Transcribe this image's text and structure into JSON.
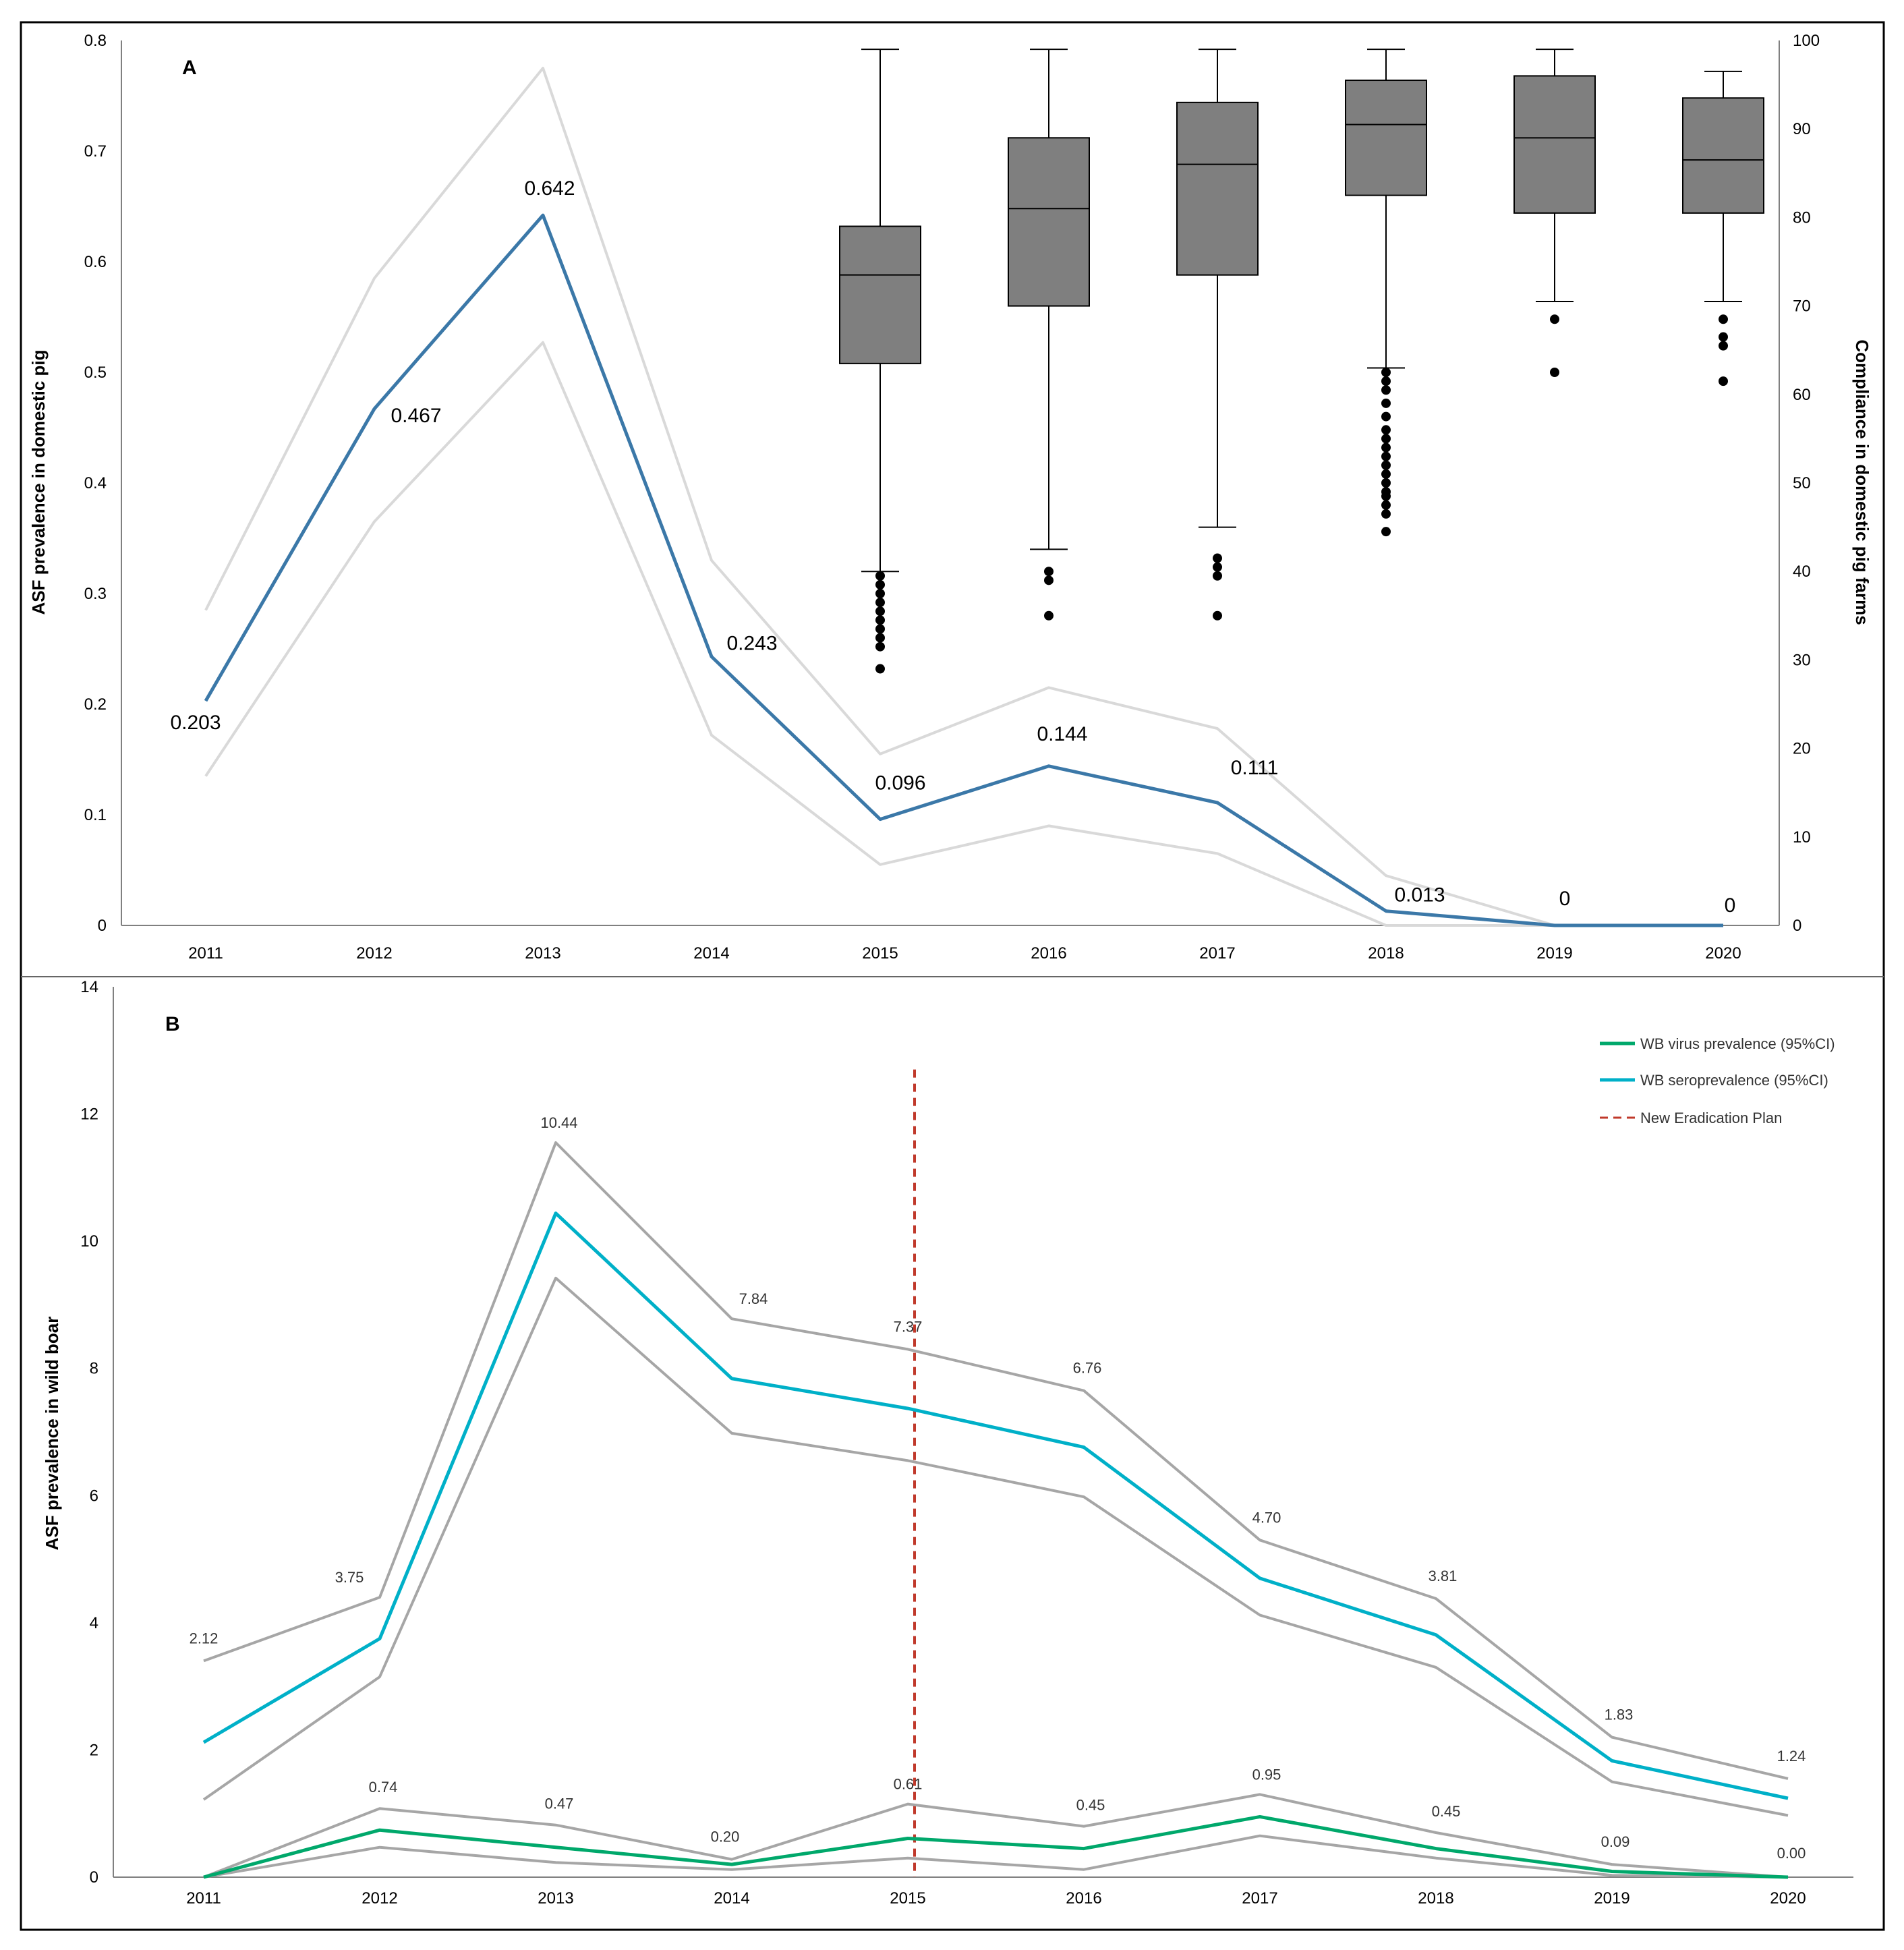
{
  "panel_a": {
    "letter": "A",
    "chart_data": {
      "type": "line",
      "x": [
        "2011",
        "2012",
        "2013",
        "2014",
        "2015",
        "2016",
        "2017",
        "2018",
        "2019",
        "2020"
      ],
      "ylabel_left": "ASF prevalence in domestic pig",
      "ylabel_right": "Compliance in domestic pig farms",
      "ylim_left": [
        0,
        0.8
      ],
      "ylim_right": [
        0,
        100
      ],
      "yticks_left": [
        "0",
        "0.1",
        "0.2",
        "0.3",
        "0.4",
        "0.5",
        "0.6",
        "0.7",
        "0.8"
      ],
      "yticks_right": [
        "0",
        "10",
        "20",
        "30",
        "40",
        "50",
        "60",
        "70",
        "80",
        "90",
        "100"
      ],
      "series": [
        {
          "name": "ASF prevalence",
          "color": "#3b78a8",
          "values": [
            0.203,
            0.467,
            0.642,
            0.243,
            0.096,
            0.144,
            0.111,
            0.013,
            0,
            0
          ],
          "labels": [
            "0.203",
            "0.467",
            "0.642",
            "0.243",
            "0.096",
            "0.144",
            "0.111",
            "0.013",
            "0",
            "0"
          ]
        },
        {
          "name": "upper 95% CI",
          "color": "#d9d9d9",
          "values": [
            0.285,
            0.585,
            0.775,
            0.33,
            0.155,
            0.215,
            0.178,
            0.045,
            0,
            0
          ]
        },
        {
          "name": "lower 95% CI",
          "color": "#d9d9d9",
          "values": [
            0.135,
            0.365,
            0.527,
            0.172,
            0.055,
            0.09,
            0.065,
            0,
            0,
            0
          ]
        }
      ],
      "boxplot": {
        "color": "#7f7f7f",
        "groups": [
          {
            "year": "2015",
            "min": 40,
            "q1": 63.5,
            "median": 73.5,
            "q3": 79,
            "max": 99,
            "outliers": [
              39.5,
              38.5,
              37.5,
              36.5,
              35.5,
              34.5,
              33.5,
              32.5,
              31.5,
              29
            ]
          },
          {
            "year": "2016",
            "min": 42.5,
            "q1": 70,
            "median": 81,
            "q3": 89,
            "max": 99,
            "outliers": [
              40,
              39,
              35
            ]
          },
          {
            "year": "2017",
            "min": 45,
            "q1": 73.5,
            "median": 86,
            "q3": 93,
            "max": 99,
            "outliers": [
              41.5,
              40.5,
              39.5,
              35
            ]
          },
          {
            "year": "2018",
            "min": 63,
            "q1": 82.5,
            "median": 90.5,
            "q3": 95.5,
            "max": 99,
            "outliers": [
              62.5,
              61.5,
              60.5,
              59,
              57.5,
              56,
              55,
              54,
              53,
              52,
              51,
              50,
              49,
              48.5,
              47.5,
              46.5,
              44.5
            ]
          },
          {
            "year": "2019",
            "min": 70.5,
            "q1": 80.5,
            "median": 89,
            "q3": 96,
            "max": 99,
            "outliers": [
              68.5,
              62.5
            ]
          },
          {
            "year": "2020",
            "min": 70.5,
            "q1": 80.5,
            "median": 86.5,
            "q3": 93.5,
            "max": 96.5,
            "outliers": [
              68.5,
              66.5,
              65.5,
              61.5
            ]
          }
        ]
      }
    }
  },
  "panel_b": {
    "letter": "B",
    "chart_data": {
      "type": "line",
      "x": [
        "2011",
        "2012",
        "2013",
        "2014",
        "2015",
        "2016",
        "2017",
        "2018",
        "2019",
        "2020"
      ],
      "ylabel": "ASF prevalence in wild boar",
      "ylim": [
        0,
        14
      ],
      "yticks": [
        "0",
        "2",
        "4",
        "6",
        "8",
        "10",
        "12",
        "14"
      ],
      "series": [
        {
          "name": "WB seroprevalence (95%CI)",
          "color": "#00b0c8",
          "values": [
            2.12,
            3.75,
            10.44,
            7.84,
            7.37,
            6.76,
            4.7,
            3.81,
            1.83,
            1.24
          ],
          "labels": [
            "2.12",
            "3.75",
            "10.44",
            "7.84",
            "7.37",
            "6.76",
            "4.70",
            "3.81",
            "1.83",
            "1.24"
          ]
        },
        {
          "name": "WB seroprevalence upper CI",
          "color": "#a6a6a6",
          "values": [
            3.4,
            4.4,
            11.55,
            8.78,
            8.3,
            7.65,
            5.3,
            4.38,
            2.2,
            1.55
          ]
        },
        {
          "name": "WB seroprevalence lower CI",
          "color": "#a6a6a6",
          "values": [
            1.22,
            3.15,
            9.42,
            6.98,
            6.55,
            5.98,
            4.12,
            3.3,
            1.5,
            0.97
          ]
        },
        {
          "name": "WB virus prevalence (95%CI)",
          "color": "#00a86b",
          "values": [
            0,
            0.74,
            0.47,
            0.2,
            0.61,
            0.45,
            0.95,
            0.45,
            0.09,
            0.0
          ],
          "labels": [
            "",
            "0.74",
            "0.47",
            "0.20",
            "0.61",
            "0.45",
            "0.95",
            "0.45",
            "0.09",
            "0.00"
          ]
        },
        {
          "name": "WB virus prevalence upper CI",
          "color": "#a6a6a6",
          "values": [
            0,
            1.08,
            0.82,
            0.28,
            1.15,
            0.8,
            1.3,
            0.7,
            0.2,
            0
          ]
        },
        {
          "name": "WB virus prevalence lower CI",
          "color": "#a6a6a6",
          "values": [
            0,
            0.47,
            0.23,
            0.12,
            0.3,
            0.12,
            0.65,
            0.3,
            0.03,
            0
          ]
        }
      ],
      "vline": {
        "x": "2015",
        "color": "#c0392b",
        "ymax": 12.7
      },
      "legend": {
        "position": "top-right",
        "items": [
          {
            "label": "WB virus prevalence (95%CI)",
            "color": "#00a86b",
            "style": "solid"
          },
          {
            "label": "WB seroprevalence (95%CI)",
            "color": "#00b0c8",
            "style": "solid"
          },
          {
            "label": "New Eradication Plan",
            "color": "#c0392b",
            "style": "dashed"
          }
        ]
      }
    }
  }
}
